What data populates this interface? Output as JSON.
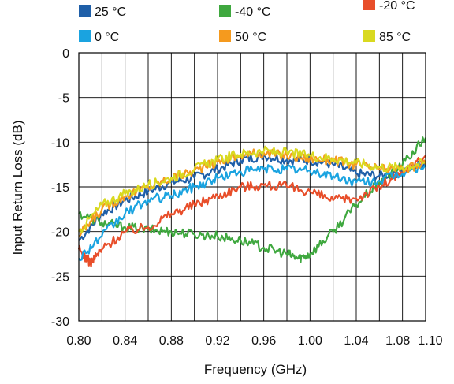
{
  "chart_data": {
    "type": "line",
    "title": "",
    "xlabel": "Frequency (GHz)",
    "ylabel": "Input Return Loss (dB)",
    "xlim": [
      0.8,
      1.1
    ],
    "ylim": [
      -30,
      0
    ],
    "x_ticks": [
      "0.80",
      "0.84",
      "0.88",
      "0.92",
      "0.96",
      "1.00",
      "1.04",
      "1.08",
      "1.10"
    ],
    "y_ticks": [
      "0",
      "-5",
      "-10",
      "-15",
      "-20",
      "-25",
      "-30"
    ],
    "grid": true,
    "legend_position": "top",
    "series": [
      {
        "name": "25 °C",
        "color": "#1f5fa8",
        "x": [
          0.8,
          0.82,
          0.84,
          0.86,
          0.88,
          0.9,
          0.92,
          0.94,
          0.96,
          0.98,
          1.0,
          1.02,
          1.04,
          1.06,
          1.08,
          1.1
        ],
        "y": [
          -21.0,
          -18.0,
          -16.5,
          -15.5,
          -14.5,
          -14.0,
          -13.0,
          -12.0,
          -11.5,
          -12.0,
          -12.0,
          -12.5,
          -13.5,
          -13.8,
          -13.3,
          -12.3
        ]
      },
      {
        "name": "-40 °C",
        "color": "#3fa83f",
        "x": [
          0.8,
          0.82,
          0.84,
          0.86,
          0.88,
          0.9,
          0.92,
          0.94,
          0.96,
          0.98,
          0.99,
          1.0,
          1.02,
          1.04,
          1.06,
          1.08,
          1.1
        ],
        "y": [
          -18.0,
          -19.0,
          -19.5,
          -19.8,
          -20.0,
          -20.3,
          -20.5,
          -21.0,
          -21.8,
          -22.5,
          -23.0,
          -22.5,
          -20.0,
          -17.0,
          -14.5,
          -12.5,
          -9.5
        ]
      },
      {
        "name": "-20 °C",
        "color": "#e84e2a",
        "x": [
          0.8,
          0.81,
          0.82,
          0.84,
          0.86,
          0.88,
          0.9,
          0.92,
          0.94,
          0.96,
          0.98,
          1.0,
          1.02,
          1.04,
          1.06,
          1.08,
          1.1
        ],
        "y": [
          -22.0,
          -23.5,
          -22.0,
          -20.0,
          -19.5,
          -18.0,
          -17.0,
          -16.0,
          -15.0,
          -14.8,
          -15.0,
          -15.5,
          -16.5,
          -16.3,
          -15.0,
          -13.5,
          -11.5
        ]
      },
      {
        "name": "0 °C",
        "color": "#1aa3e0",
        "x": [
          0.8,
          0.82,
          0.84,
          0.86,
          0.88,
          0.9,
          0.92,
          0.94,
          0.96,
          0.98,
          1.0,
          1.02,
          1.04,
          1.06,
          1.08,
          1.1
        ],
        "y": [
          -23.0,
          -20.5,
          -18.0,
          -16.5,
          -16.0,
          -15.0,
          -14.0,
          -13.3,
          -13.0,
          -13.0,
          -13.2,
          -13.8,
          -14.5,
          -14.3,
          -13.5,
          -12.5
        ]
      },
      {
        "name": "50 °C",
        "color": "#f59a1e",
        "x": [
          0.8,
          0.82,
          0.84,
          0.86,
          0.88,
          0.9,
          0.92,
          0.94,
          0.96,
          0.98,
          1.0,
          1.02,
          1.04,
          1.06,
          1.08,
          1.1
        ],
        "y": [
          -20.5,
          -17.5,
          -16.0,
          -15.0,
          -14.0,
          -13.2,
          -12.2,
          -11.5,
          -11.2,
          -11.5,
          -11.8,
          -12.0,
          -12.5,
          -13.0,
          -13.0,
          -12.5
        ]
      },
      {
        "name": "85 °C",
        "color": "#d9d920",
        "x": [
          0.8,
          0.82,
          0.84,
          0.86,
          0.88,
          0.9,
          0.92,
          0.94,
          0.96,
          0.98,
          1.0,
          1.02,
          1.04,
          1.06,
          1.08,
          1.1
        ],
        "y": [
          -20.0,
          -17.0,
          -15.8,
          -14.8,
          -14.0,
          -13.0,
          -12.0,
          -11.3,
          -11.0,
          -11.2,
          -11.5,
          -11.8,
          -12.3,
          -12.8,
          -12.8,
          -12.3
        ]
      }
    ]
  }
}
